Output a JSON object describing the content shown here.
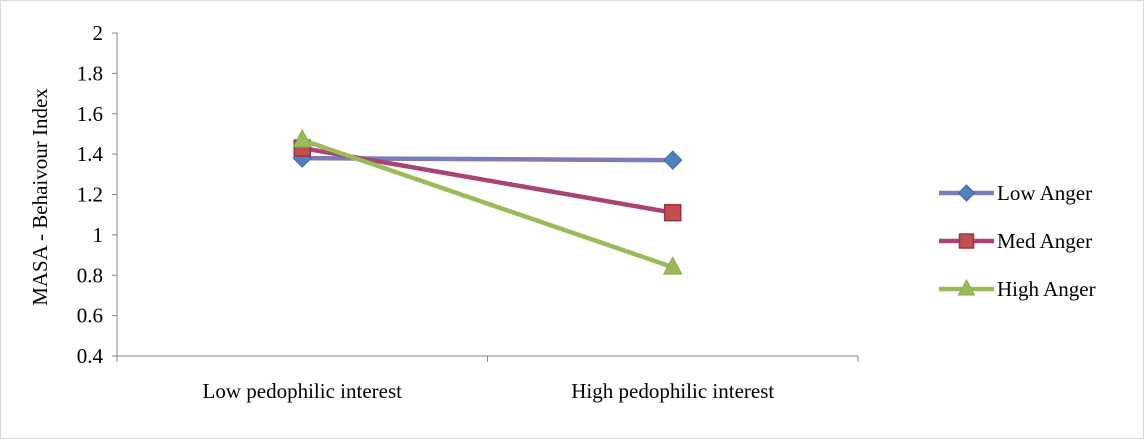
{
  "chart_data": {
    "type": "line",
    "title": "",
    "xlabel": "",
    "ylabel": "MASA - Behaivour Index",
    "categories": [
      "Low pedophilic interest",
      "High pedophilic interest"
    ],
    "ylim": [
      0.4,
      2
    ],
    "yticks": [
      "0.4",
      "0.6",
      "0.8",
      "1",
      "1.2",
      "1.4",
      "1.6",
      "1.8",
      "2"
    ],
    "grid": false,
    "legend_position": "right",
    "series": [
      {
        "name": "Low Anger",
        "values": [
          1.38,
          1.37
        ],
        "color": "#7b7db9",
        "marker_color": "#4f81bd",
        "marker": "diamond"
      },
      {
        "name": "Med Anger",
        "values": [
          1.43,
          1.11
        ],
        "color": "#a84474",
        "marker_color": "#c0504d",
        "marker": "square"
      },
      {
        "name": "High Anger",
        "values": [
          1.47,
          0.84
        ],
        "color": "#9bbb59",
        "marker_color": "#9bbb59",
        "marker": "triangle"
      }
    ]
  }
}
